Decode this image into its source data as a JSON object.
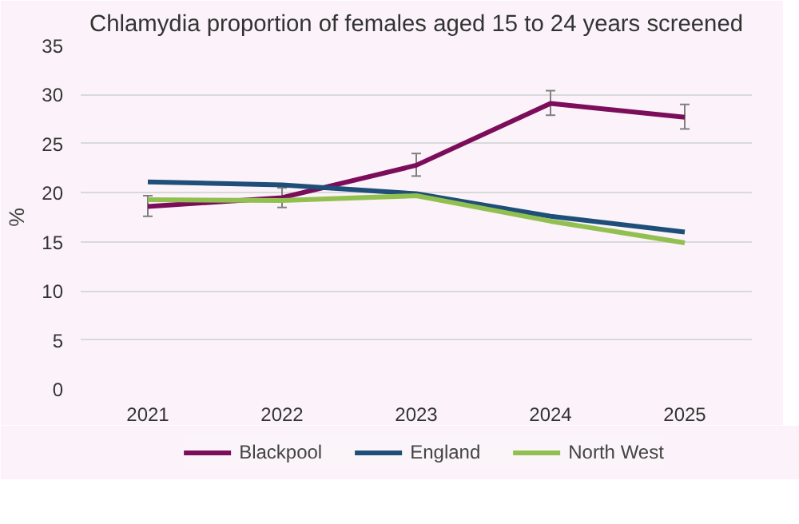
{
  "chart_data": {
    "type": "line",
    "title": "Chlamydia proportion of females aged 15 to 24 years screened",
    "ylabel": "%",
    "categories": [
      "2021",
      "2022",
      "2023",
      "2024",
      "2025"
    ],
    "series": [
      {
        "name": "Blackpool",
        "color": "#7b0d5a",
        "values": [
          18.6,
          19.5,
          22.8,
          29.1,
          27.7
        ],
        "errors": [
          [
            17.6,
            19.7
          ],
          [
            18.5,
            20.5
          ],
          [
            21.7,
            24.0
          ],
          [
            27.9,
            30.4
          ],
          [
            26.5,
            29.0
          ]
        ]
      },
      {
        "name": "England",
        "color": "#1f4e79",
        "values": [
          21.1,
          20.8,
          19.9,
          17.6,
          16.0
        ]
      },
      {
        "name": "North West",
        "color": "#92c050",
        "values": [
          19.3,
          19.2,
          19.7,
          17.1,
          14.9
        ]
      }
    ],
    "ylim": [
      0,
      35
    ],
    "yticks": [
      0,
      5,
      10,
      15,
      20,
      25,
      30,
      35
    ],
    "grid": "y",
    "legend": "bottom",
    "marker": "none",
    "line_style": "solid"
  }
}
